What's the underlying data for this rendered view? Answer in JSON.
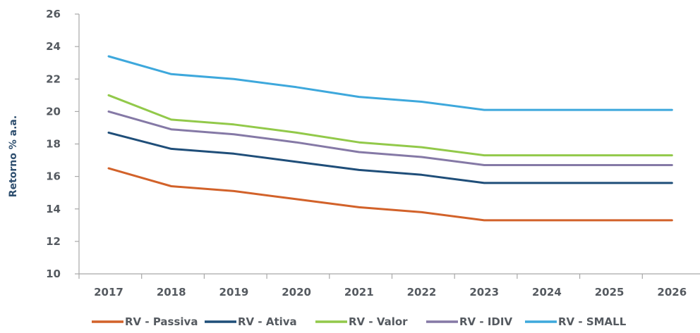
{
  "chart_data": {
    "type": "line",
    "title": "",
    "xlabel": "",
    "ylabel": "Retorno % a.a.",
    "categories": [
      "2017",
      "2018",
      "2019",
      "2020",
      "2021",
      "2022",
      "2023",
      "2024",
      "2025",
      "2026"
    ],
    "yticks": [
      "10",
      "12",
      "14",
      "16",
      "18",
      "20",
      "22",
      "24",
      "26"
    ],
    "ylim": [
      10,
      26
    ],
    "grid": false,
    "legend_position": "bottom",
    "series": [
      {
        "name": "RV - Passiva",
        "color": "#d2622a",
        "values": [
          16.5,
          15.4,
          15.1,
          14.6,
          14.1,
          13.8,
          13.3,
          13.3,
          13.3,
          13.3
        ]
      },
      {
        "name": "RV - Ativa",
        "color": "#1f4e79",
        "values": [
          18.7,
          17.7,
          17.4,
          16.9,
          16.4,
          16.1,
          15.6,
          15.6,
          15.6,
          15.6
        ]
      },
      {
        "name": "RV - Valor",
        "color": "#92c94a",
        "values": [
          21.0,
          19.5,
          19.2,
          18.7,
          18.1,
          17.8,
          17.3,
          17.3,
          17.3,
          17.3
        ]
      },
      {
        "name": "RV - IDIV",
        "color": "#8579a6",
        "values": [
          20.0,
          18.9,
          18.6,
          18.1,
          17.5,
          17.2,
          16.7,
          16.7,
          16.7,
          16.7
        ]
      },
      {
        "name": "RV - SMALL",
        "color": "#3ea8dc",
        "values": [
          23.4,
          22.3,
          22.0,
          21.5,
          20.9,
          20.6,
          20.1,
          20.1,
          20.1,
          20.1
        ]
      }
    ]
  }
}
